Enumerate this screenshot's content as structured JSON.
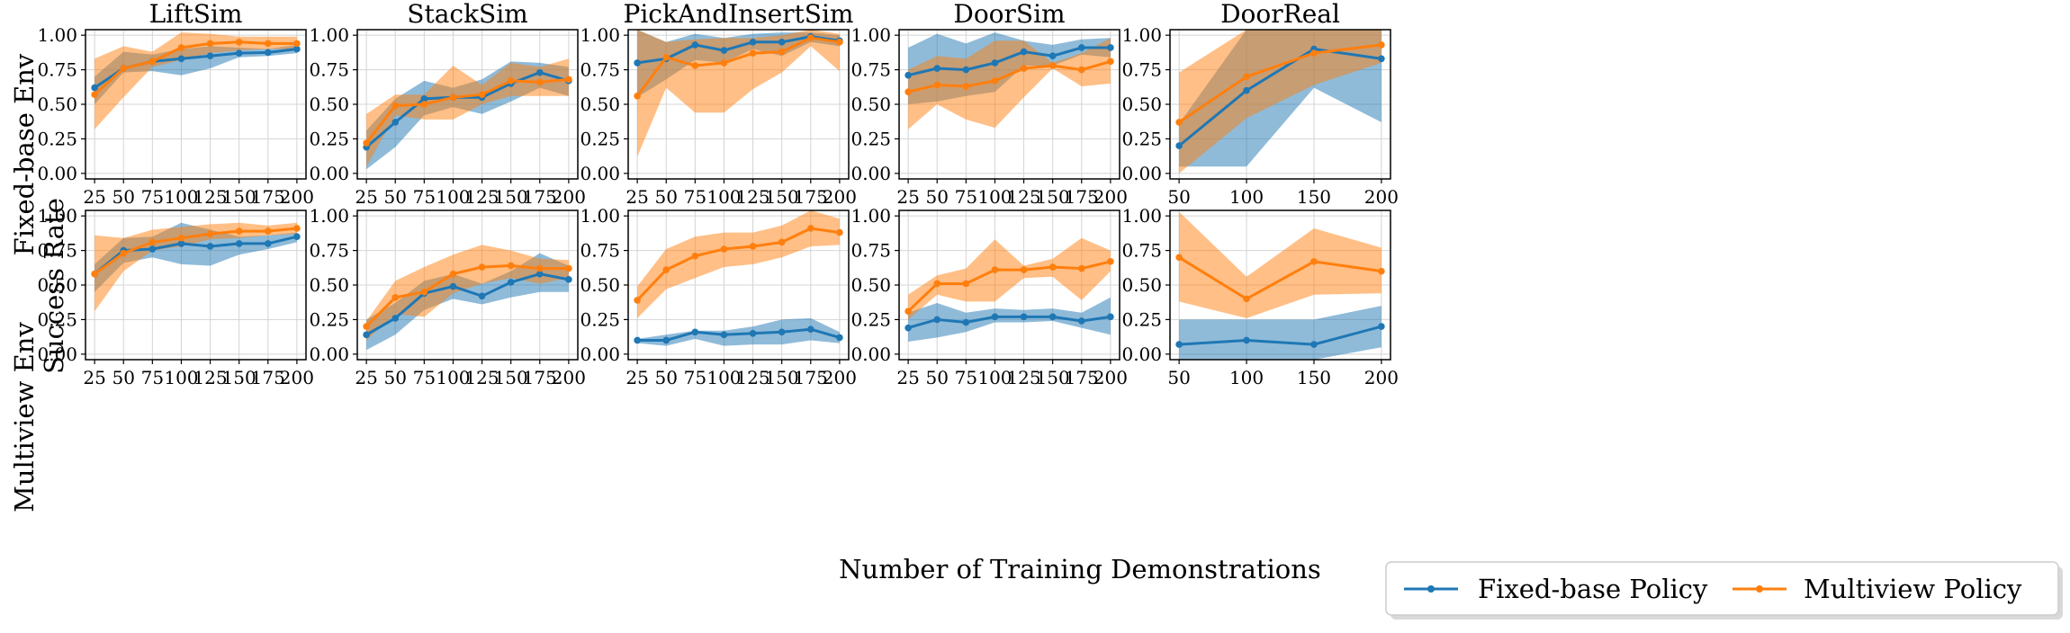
{
  "figure": {
    "xlabel": "Number of Training Demonstrations",
    "ylabel": "Success Rate",
    "row_labels": [
      "Fixed-base Env",
      "Multiview Env"
    ],
    "column_titles": [
      "LiftSim",
      "StackSim",
      "PickAndInsertSim",
      "DoorSim",
      "DoorReal"
    ],
    "legend": [
      {
        "name": "Fixed-base Policy",
        "color": "#1f77b4"
      },
      {
        "name": "Multiview Policy",
        "color": "#ff7f0e"
      }
    ]
  },
  "chart_data": [
    {
      "type": "line",
      "title": "LiftSim",
      "row": "Fixed-base Env",
      "x": [
        25,
        50,
        75,
        100,
        125,
        150,
        175,
        200
      ],
      "ylim": [
        -0.04,
        1.04
      ],
      "yticks": [
        0.0,
        0.25,
        0.5,
        0.75,
        1.0
      ],
      "ytick_labels": [
        "0.00",
        "0.25",
        "0.50",
        "0.75",
        "1.00"
      ],
      "grid": true,
      "series": [
        {
          "name": "Fixed-base Policy",
          "values": [
            0.62,
            0.76,
            0.81,
            0.83,
            0.85,
            0.87,
            0.875,
            0.9
          ],
          "lower": [
            0.5,
            0.73,
            0.74,
            0.71,
            0.76,
            0.84,
            0.85,
            0.87
          ],
          "upper": [
            0.7,
            0.88,
            0.86,
            0.9,
            0.92,
            0.91,
            0.9,
            0.93
          ]
        },
        {
          "name": "Multiview Policy",
          "values": [
            0.57,
            0.76,
            0.81,
            0.91,
            0.94,
            0.95,
            0.94,
            0.94
          ],
          "lower": [
            0.32,
            0.55,
            0.77,
            0.82,
            0.87,
            0.89,
            0.9,
            0.9
          ],
          "upper": [
            0.83,
            0.92,
            0.88,
            1.02,
            1.01,
            0.99,
            0.99,
            0.99
          ]
        }
      ]
    },
    {
      "type": "line",
      "title": "StackSim",
      "row": "Fixed-base Env",
      "x": [
        25,
        50,
        75,
        100,
        125,
        150,
        175,
        200
      ],
      "ylim": [
        -0.04,
        1.04
      ],
      "yticks": [
        0.0,
        0.25,
        0.5,
        0.75,
        1.0
      ],
      "ytick_labels": [
        "0.00",
        "0.25",
        "0.50",
        "0.75",
        "1.00"
      ],
      "grid": true,
      "series": [
        {
          "name": "Fixed-base Policy",
          "values": [
            0.19,
            0.37,
            0.54,
            0.55,
            0.55,
            0.65,
            0.73,
            0.67
          ],
          "lower": [
            0.03,
            0.19,
            0.42,
            0.48,
            0.43,
            0.52,
            0.62,
            0.56
          ],
          "upper": [
            0.31,
            0.54,
            0.67,
            0.62,
            0.68,
            0.81,
            0.8,
            0.77
          ]
        },
        {
          "name": "Multiview Policy",
          "values": [
            0.22,
            0.49,
            0.5,
            0.55,
            0.57,
            0.67,
            0.66,
            0.68
          ],
          "lower": [
            0.05,
            0.42,
            0.39,
            0.39,
            0.5,
            0.56,
            0.56,
            0.56
          ],
          "upper": [
            0.43,
            0.57,
            0.57,
            0.78,
            0.64,
            0.8,
            0.77,
            0.83
          ]
        }
      ]
    },
    {
      "type": "line",
      "title": "PickAndInsertSim",
      "row": "Fixed-base Env",
      "x": [
        25,
        50,
        75,
        100,
        125,
        150,
        175,
        200
      ],
      "ylim": [
        -0.04,
        1.04
      ],
      "yticks": [
        0.0,
        0.25,
        0.5,
        0.75,
        1.0
      ],
      "ytick_labels": [
        "0.00",
        "0.25",
        "0.50",
        "0.75",
        "1.00"
      ],
      "grid": true,
      "series": [
        {
          "name": "Fixed-base Policy",
          "values": [
            0.8,
            0.83,
            0.93,
            0.89,
            0.95,
            0.95,
            0.99,
            0.96
          ],
          "lower": [
            0.55,
            0.68,
            0.82,
            0.8,
            0.9,
            0.85,
            0.95,
            0.92
          ],
          "upper": [
            1.04,
            0.95,
            1.01,
            0.98,
            1.01,
            1.02,
            1.02,
            1.0
          ]
        },
        {
          "name": "Multiview Policy",
          "values": [
            0.56,
            0.84,
            0.78,
            0.8,
            0.87,
            0.88,
            0.98,
            0.95
          ],
          "lower": [
            0.12,
            0.62,
            0.44,
            0.44,
            0.61,
            0.73,
            0.92,
            0.74
          ],
          "upper": [
            1.04,
            0.95,
            0.97,
            0.98,
            0.98,
            1.0,
            1.04,
            1.01
          ]
        }
      ]
    },
    {
      "type": "line",
      "title": "DoorSim",
      "row": "Fixed-base Env",
      "x": [
        25,
        50,
        75,
        100,
        125,
        150,
        175,
        200
      ],
      "ylim": [
        -0.04,
        1.04
      ],
      "yticks": [
        0.0,
        0.25,
        0.5,
        0.75,
        1.0
      ],
      "ytick_labels": [
        "0.00",
        "0.25",
        "0.50",
        "0.75",
        "1.00"
      ],
      "grid": true,
      "series": [
        {
          "name": "Fixed-base Policy",
          "values": [
            0.71,
            0.76,
            0.75,
            0.8,
            0.88,
            0.85,
            0.91,
            0.91
          ],
          "lower": [
            0.5,
            0.52,
            0.56,
            0.59,
            0.78,
            0.78,
            0.86,
            0.84
          ],
          "upper": [
            0.91,
            1.01,
            0.94,
            1.02,
            0.96,
            0.93,
            0.97,
            0.98
          ]
        },
        {
          "name": "Multiview Policy",
          "values": [
            0.59,
            0.64,
            0.63,
            0.67,
            0.76,
            0.78,
            0.75,
            0.81
          ],
          "lower": [
            0.32,
            0.5,
            0.39,
            0.33,
            0.55,
            0.76,
            0.63,
            0.65
          ],
          "upper": [
            0.75,
            0.85,
            0.83,
            0.96,
            0.96,
            0.8,
            0.87,
            0.98
          ]
        }
      ]
    },
    {
      "type": "line",
      "title": "DoorReal",
      "row": "Fixed-base Env",
      "x": [
        50,
        100,
        150,
        200
      ],
      "ylim": [
        -0.04,
        1.04
      ],
      "yticks": [
        0.0,
        0.25,
        0.5,
        0.75,
        1.0
      ],
      "ytick_labels": [
        "0.00",
        "0.25",
        "0.50",
        "0.75",
        "1.00"
      ],
      "grid": true,
      "series": [
        {
          "name": "Fixed-base Policy",
          "values": [
            0.2,
            0.6,
            0.9,
            0.83
          ],
          "lower": [
            0.05,
            0.05,
            0.62,
            0.37
          ],
          "upper": [
            0.36,
            1.04,
            1.04,
            1.04
          ]
        },
        {
          "name": "Multiview Policy",
          "values": [
            0.37,
            0.7,
            0.87,
            0.93
          ],
          "lower": [
            0.0,
            0.4,
            0.64,
            0.8
          ],
          "upper": [
            0.73,
            1.04,
            1.04,
            1.04
          ]
        }
      ]
    },
    {
      "type": "line",
      "title": "",
      "row": "Multiview Env",
      "x": [
        25,
        50,
        75,
        100,
        125,
        150,
        175,
        200
      ],
      "ylim": [
        -0.04,
        1.04
      ],
      "yticks": [
        0.0,
        0.25,
        0.5,
        0.75,
        1.0
      ],
      "ytick_labels": [
        "0.00",
        "0.25",
        "0.50",
        "0.75",
        "1.00"
      ],
      "grid": true,
      "series": [
        {
          "name": "Fixed-base Policy",
          "values": [
            0.58,
            0.75,
            0.76,
            0.8,
            0.78,
            0.8,
            0.8,
            0.85
          ],
          "lower": [
            0.45,
            0.66,
            0.7,
            0.65,
            0.64,
            0.72,
            0.76,
            0.81
          ],
          "upper": [
            0.65,
            0.84,
            0.85,
            0.95,
            0.9,
            0.85,
            0.86,
            0.88
          ]
        },
        {
          "name": "Multiview Policy",
          "values": [
            0.58,
            0.73,
            0.81,
            0.84,
            0.87,
            0.89,
            0.89,
            0.91
          ],
          "lower": [
            0.31,
            0.6,
            0.75,
            0.78,
            0.83,
            0.84,
            0.86,
            0.87
          ],
          "upper": [
            0.86,
            0.84,
            0.9,
            0.92,
            0.94,
            0.95,
            0.93,
            0.95
          ]
        }
      ]
    },
    {
      "type": "line",
      "title": "",
      "row": "Multiview Env",
      "x": [
        25,
        50,
        75,
        100,
        125,
        150,
        175,
        200
      ],
      "ylim": [
        -0.04,
        1.04
      ],
      "yticks": [
        0.0,
        0.25,
        0.5,
        0.75,
        1.0
      ],
      "ytick_labels": [
        "0.00",
        "0.25",
        "0.50",
        "0.75",
        "1.00"
      ],
      "grid": true,
      "series": [
        {
          "name": "Fixed-base Policy",
          "values": [
            0.14,
            0.26,
            0.44,
            0.49,
            0.42,
            0.52,
            0.58,
            0.54
          ],
          "lower": [
            0.03,
            0.14,
            0.32,
            0.4,
            0.36,
            0.41,
            0.45,
            0.45
          ],
          "upper": [
            0.25,
            0.37,
            0.53,
            0.58,
            0.51,
            0.6,
            0.73,
            0.64
          ]
        },
        {
          "name": "Multiview Policy",
          "values": [
            0.2,
            0.41,
            0.45,
            0.58,
            0.63,
            0.64,
            0.62,
            0.62
          ],
          "lower": [
            0.1,
            0.29,
            0.27,
            0.44,
            0.51,
            0.55,
            0.51,
            0.55
          ],
          "upper": [
            0.24,
            0.53,
            0.63,
            0.72,
            0.79,
            0.75,
            0.69,
            0.68
          ]
        }
      ]
    },
    {
      "type": "line",
      "title": "",
      "row": "Multiview Env",
      "x": [
        25,
        50,
        75,
        100,
        125,
        150,
        175,
        200
      ],
      "ylim": [
        -0.04,
        1.04
      ],
      "yticks": [
        0.0,
        0.25,
        0.5,
        0.75,
        1.0
      ],
      "ytick_labels": [
        "0.00",
        "0.25",
        "0.50",
        "0.75",
        "1.00"
      ],
      "grid": true,
      "series": [
        {
          "name": "Fixed-base Policy",
          "values": [
            0.1,
            0.1,
            0.16,
            0.14,
            0.15,
            0.16,
            0.18,
            0.12
          ],
          "lower": [
            0.08,
            0.06,
            0.11,
            0.06,
            0.07,
            0.07,
            0.1,
            0.08
          ],
          "upper": [
            0.11,
            0.14,
            0.17,
            0.17,
            0.2,
            0.25,
            0.26,
            0.16
          ]
        },
        {
          "name": "Multiview Policy",
          "values": [
            0.39,
            0.61,
            0.71,
            0.76,
            0.78,
            0.81,
            0.91,
            0.88
          ],
          "lower": [
            0.26,
            0.47,
            0.55,
            0.63,
            0.65,
            0.7,
            0.78,
            0.79
          ],
          "upper": [
            0.49,
            0.76,
            0.85,
            0.88,
            0.88,
            0.93,
            1.04,
            0.98
          ]
        }
      ]
    },
    {
      "type": "line",
      "title": "",
      "row": "Multiview Env",
      "x": [
        25,
        50,
        75,
        100,
        125,
        150,
        175,
        200
      ],
      "ylim": [
        -0.04,
        1.04
      ],
      "yticks": [
        0.0,
        0.25,
        0.5,
        0.75,
        1.0
      ],
      "ytick_labels": [
        "0.00",
        "0.25",
        "0.50",
        "0.75",
        "1.00"
      ],
      "grid": true,
      "series": [
        {
          "name": "Fixed-base Policy",
          "values": [
            0.19,
            0.25,
            0.23,
            0.27,
            0.27,
            0.27,
            0.24,
            0.27
          ],
          "lower": [
            0.09,
            0.12,
            0.16,
            0.23,
            0.23,
            0.24,
            0.19,
            0.14
          ],
          "upper": [
            0.3,
            0.37,
            0.3,
            0.33,
            0.32,
            0.33,
            0.3,
            0.41
          ]
        },
        {
          "name": "Multiview Policy",
          "values": [
            0.31,
            0.51,
            0.51,
            0.61,
            0.61,
            0.63,
            0.62,
            0.67
          ],
          "lower": [
            0.25,
            0.43,
            0.38,
            0.38,
            0.55,
            0.56,
            0.39,
            0.6
          ],
          "upper": [
            0.43,
            0.57,
            0.62,
            0.83,
            0.64,
            0.69,
            0.84,
            0.75
          ]
        }
      ]
    },
    {
      "type": "line",
      "title": "",
      "row": "Multiview Env",
      "x": [
        50,
        100,
        150,
        200
      ],
      "ylim": [
        -0.04,
        1.04
      ],
      "yticks": [
        0.0,
        0.25,
        0.5,
        0.75,
        1.0
      ],
      "ytick_labels": [
        "0.00",
        "0.25",
        "0.50",
        "0.75",
        "1.00"
      ],
      "grid": true,
      "series": [
        {
          "name": "Fixed-base Policy",
          "values": [
            0.07,
            0.1,
            0.07,
            0.2
          ],
          "lower": [
            -0.04,
            -0.04,
            -0.04,
            0.05
          ],
          "upper": [
            0.25,
            0.25,
            0.25,
            0.35
          ]
        },
        {
          "name": "Multiview Policy",
          "values": [
            0.7,
            0.4,
            0.67,
            0.6
          ],
          "lower": [
            0.38,
            0.26,
            0.43,
            0.44
          ],
          "upper": [
            1.03,
            0.56,
            0.91,
            0.77
          ]
        }
      ]
    }
  ]
}
